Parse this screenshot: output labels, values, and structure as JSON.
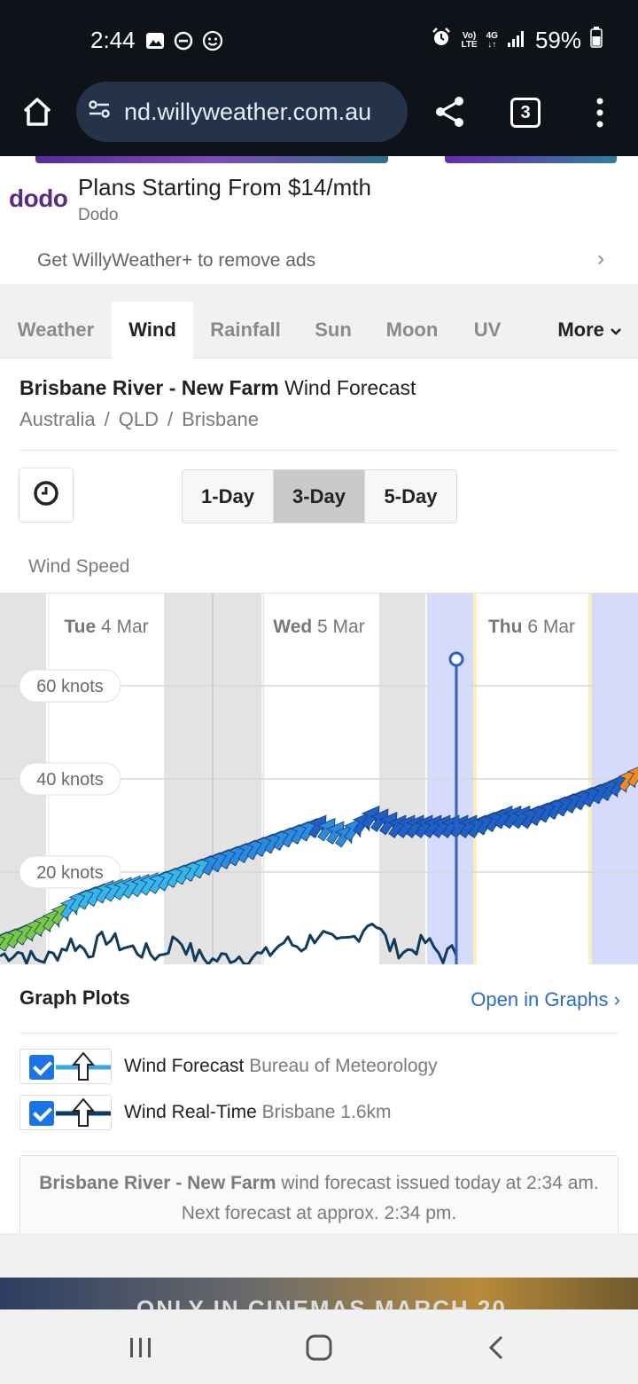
{
  "status_bar": {
    "time": "2:44",
    "network_top": "Vo)",
    "network_bottom": "LTE",
    "net_type": "4G",
    "battery": "59%"
  },
  "browser": {
    "url": "nd.willyweather.com.au",
    "tab_count": "3"
  },
  "ad": {
    "logo": "dodo",
    "title": "Plans Starting From $14/mth",
    "advertiser": "Dodo",
    "remove_ads": "Get WillyWeather+ to remove ads"
  },
  "tabs": [
    "Weather",
    "Wind",
    "Rainfall",
    "Sun",
    "Moon",
    "UV"
  ],
  "active_tab": "Wind",
  "more_label": "More",
  "page": {
    "location_bold": "Brisbane River - New Farm",
    "title_suffix": "Wind Forecast",
    "crumbs": [
      "Australia",
      "QLD",
      "Brisbane"
    ],
    "day_buttons": [
      "1-Day",
      "3-Day",
      "5-Day"
    ],
    "active_day": "3-Day",
    "wind_speed_label": "Wind Speed"
  },
  "chart_data": {
    "type": "line",
    "days": [
      {
        "bold": "Tue",
        "rest": "4 Mar"
      },
      {
        "bold": "Wed",
        "rest": "5 Mar"
      },
      {
        "bold": "Thu",
        "rest": "6 Mar"
      }
    ],
    "y_ticks": [
      "20 knots",
      "40 knots",
      "60 knots"
    ],
    "y_tick_values": [
      20,
      40,
      60
    ],
    "ylim": [
      0,
      65
    ],
    "xlim": [
      0,
      72
    ],
    "x_unit": "hours from start of Tue 4 Mar",
    "current_time_hours": 51.5,
    "series": [
      {
        "name": "Wind Forecast",
        "color_scale": [
          "#6fc43b",
          "#2ab0e8",
          "#1f5fc8",
          "#f08a24"
        ],
        "x": [
          0,
          3,
          6,
          9,
          12,
          15,
          18,
          21,
          24,
          27,
          30,
          33,
          36,
          39,
          42,
          45,
          48,
          51,
          54,
          57,
          60,
          63,
          66,
          69,
          72
        ],
        "values": [
          5,
          7,
          10,
          14,
          16,
          17,
          18,
          20,
          22,
          24,
          26,
          28,
          30,
          28,
          32,
          30,
          30,
          30,
          30,
          32,
          32,
          34,
          36,
          38,
          41
        ]
      },
      {
        "name": "Wind Real-Time",
        "color": "#0f3b5e",
        "x": [
          0,
          2,
          4,
          6,
          8,
          10,
          12,
          14,
          16,
          18,
          20,
          22,
          24,
          26,
          28,
          30,
          32,
          34,
          36,
          38,
          40,
          42,
          44,
          46,
          48,
          50,
          51.5
        ],
        "values": [
          2,
          3,
          1,
          2,
          5,
          3,
          6,
          4,
          3,
          2,
          6,
          2,
          1,
          2,
          2,
          2,
          5,
          4,
          7,
          4,
          6,
          10,
          4,
          3,
          5,
          2,
          3
        ]
      }
    ]
  },
  "graph_plots": {
    "title": "Graph Plots",
    "open_link": "Open in Graphs",
    "rows": [
      {
        "name": "Wind Forecast",
        "source": "Bureau of Meteorology",
        "line_color": "#35a8e6"
      },
      {
        "name": "Wind Real-Time",
        "source": "Brisbane 1.6km",
        "line_color": "#0f3b5e"
      }
    ]
  },
  "notice": {
    "location": "Brisbane River - New Farm",
    "text": "wind forecast issued today at 2:34 am. Next forecast at approx. 2:34 pm."
  },
  "bottom_ad": {
    "text": "ONLY IN CINEMAS MARCH 20"
  }
}
